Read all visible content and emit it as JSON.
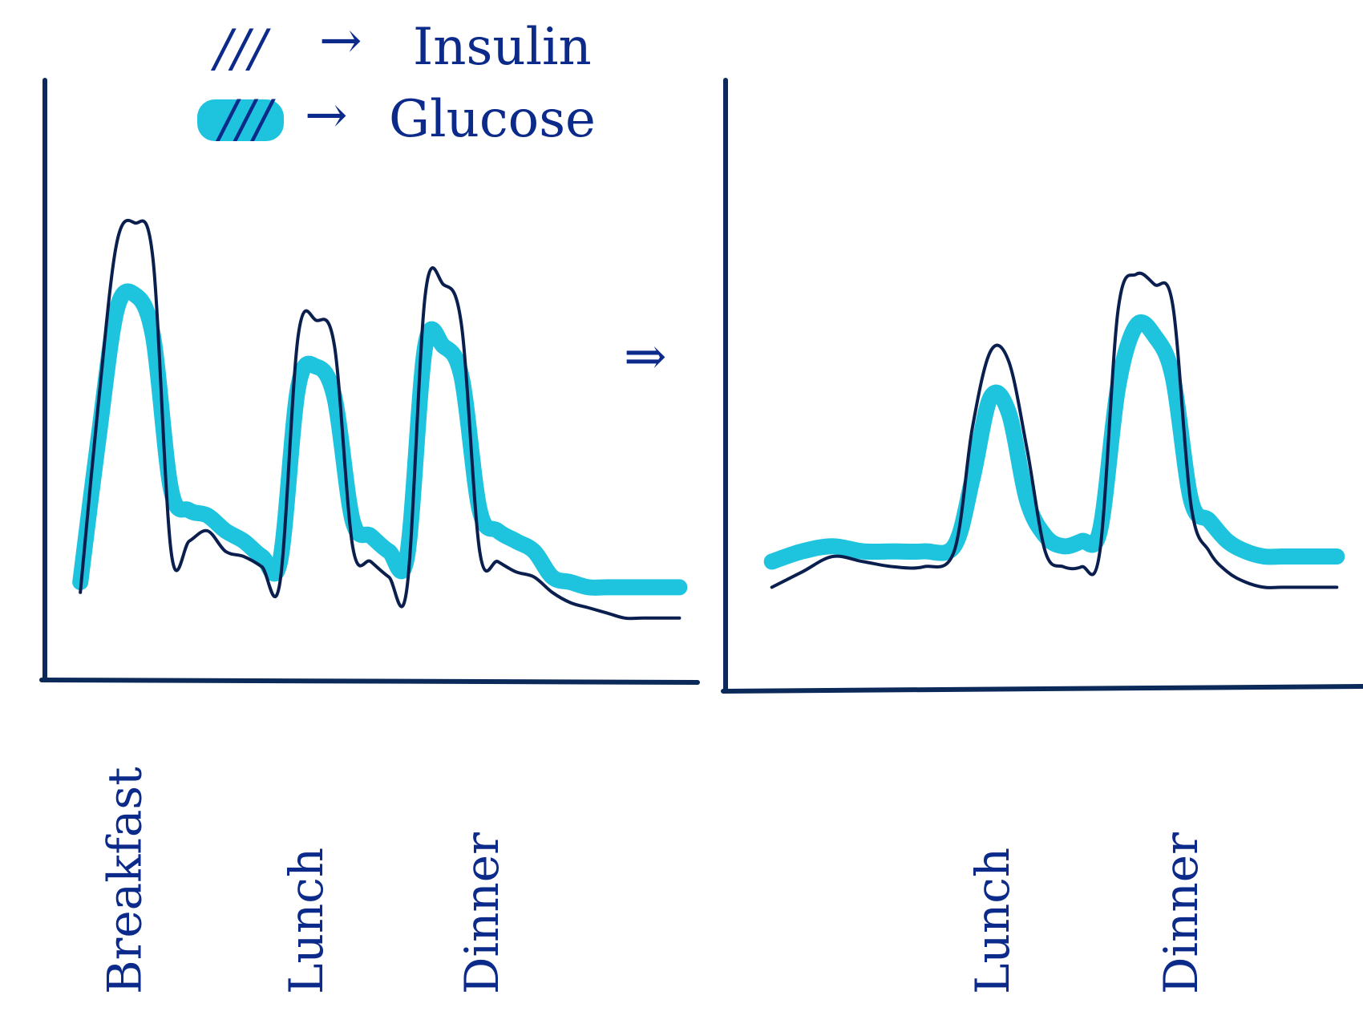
{
  "colors": {
    "insulin": "#0b1f4f",
    "glucose": "#1ec3de",
    "ink": "#0b2a8a",
    "axis": "#0b2a5a"
  },
  "legend": {
    "insulin_symbol": "///",
    "insulin_arrow": "→",
    "insulin_label": "Insulin",
    "glucose_symbol": "///",
    "glucose_arrow": "→",
    "glucose_label": "Glucose"
  },
  "transition_arrow": "⇒",
  "chart_data": [
    {
      "type": "line",
      "title": "",
      "xlabel": "",
      "ylabel": "",
      "x": [
        0.0,
        0.3,
        0.6,
        0.9,
        1.2,
        1.5,
        1.8,
        2.1,
        2.4,
        2.7,
        3.0,
        3.3,
        3.6,
        3.9,
        4.2,
        4.5,
        4.8,
        5.1,
        5.4,
        5.7,
        6.0,
        6.3,
        6.6,
        6.9,
        7.2,
        7.5,
        7.8,
        8.1,
        8.4,
        8.7,
        9.0,
        9.3,
        9.6,
        9.9
      ],
      "xlim": [
        -0.4,
        10.2
      ],
      "ylim": [
        0,
        10
      ],
      "grid": false,
      "legend_position": "top",
      "meal_labels": [
        {
          "label": "Breakfast",
          "x": 1.0
        },
        {
          "label": "Lunch",
          "x": 4.0
        },
        {
          "label": "Dinner",
          "x": 6.9
        }
      ],
      "series": [
        {
          "name": "Insulin",
          "values": [
            0.8,
            4.5,
            7.6,
            8.0,
            7.3,
            1.6,
            1.8,
            2.0,
            1.6,
            1.5,
            1.3,
            1.0,
            5.8,
            6.1,
            5.6,
            1.7,
            1.4,
            1.1,
            0.9,
            6.6,
            6.8,
            6.0,
            1.6,
            1.4,
            1.2,
            1.1,
            0.8,
            0.6,
            0.5,
            0.4,
            0.3,
            0.3,
            0.3,
            0.3
          ]
        },
        {
          "name": "Glucose",
          "values": [
            1.0,
            3.8,
            6.3,
            6.6,
            5.8,
            2.8,
            2.4,
            2.3,
            2.0,
            1.8,
            1.5,
            1.4,
            4.8,
            5.2,
            4.6,
            2.2,
            1.9,
            1.6,
            1.5,
            5.6,
            5.6,
            5.0,
            2.4,
            2.0,
            1.8,
            1.6,
            1.1,
            1.0,
            0.9,
            0.9,
            0.9,
            0.9,
            0.9,
            0.9
          ]
        }
      ]
    },
    {
      "type": "line",
      "title": "",
      "xlabel": "",
      "ylabel": "",
      "x": [
        0.0,
        0.5,
        1.0,
        1.5,
        2.0,
        2.5,
        3.0,
        3.3,
        3.6,
        3.9,
        4.2,
        4.5,
        4.8,
        5.1,
        5.4,
        5.7,
        6.0,
        6.3,
        6.6,
        6.9,
        7.2,
        7.5,
        7.8,
        8.1,
        8.4,
        8.7,
        9.0,
        9.3
      ],
      "xlim": [
        -0.3,
        9.6
      ],
      "ylim": [
        0,
        10
      ],
      "grid": false,
      "legend_position": "none",
      "meal_labels": [
        {
          "label": "Lunch",
          "x": 3.9
        },
        {
          "label": "Dinner",
          "x": 7.0
        }
      ],
      "series": [
        {
          "name": "Insulin",
          "values": [
            0.9,
            1.2,
            1.5,
            1.4,
            1.3,
            1.3,
            1.6,
            4.0,
            5.5,
            5.3,
            3.6,
            1.6,
            1.3,
            1.3,
            1.6,
            6.3,
            7.0,
            6.8,
            6.4,
            2.5,
            1.6,
            1.2,
            1.0,
            0.9,
            0.9,
            0.9,
            0.9,
            0.9
          ]
        },
        {
          "name": "Glucose",
          "values": [
            1.4,
            1.6,
            1.7,
            1.6,
            1.6,
            1.6,
            1.7,
            3.0,
            4.6,
            4.3,
            2.6,
            1.9,
            1.7,
            1.8,
            2.0,
            4.8,
            6.0,
            5.8,
            5.0,
            2.6,
            2.2,
            1.8,
            1.6,
            1.5,
            1.5,
            1.5,
            1.5,
            1.5
          ]
        }
      ]
    }
  ]
}
